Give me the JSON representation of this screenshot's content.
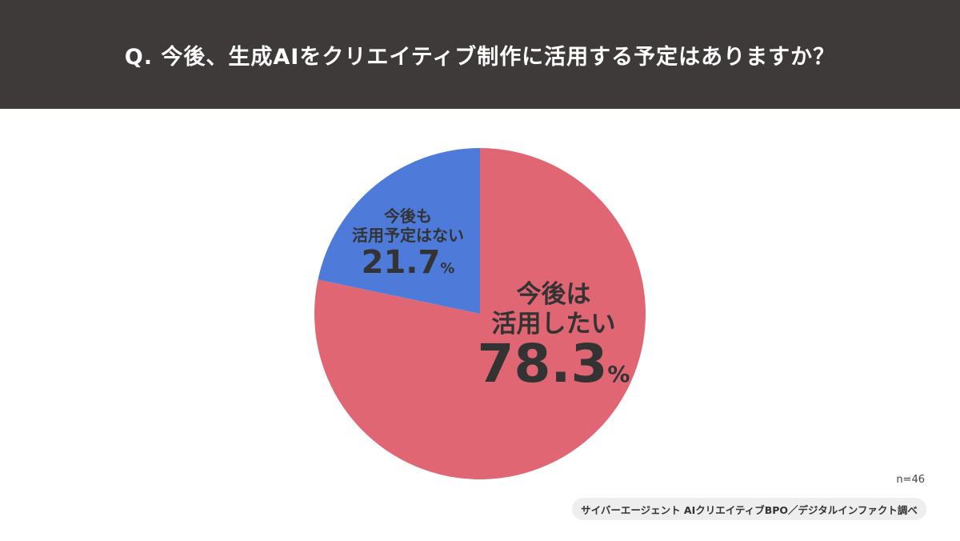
{
  "header": {
    "title": "Q. 今後、生成AIをクリエイティブ制作に活用する予定はありますか？"
  },
  "chart_data": {
    "type": "pie",
    "slices": [
      {
        "label_lines": [
          "今後は",
          "活用したい"
        ],
        "value": 78.3,
        "value_text": "78.3",
        "unit": "%",
        "color": "#e06673"
      },
      {
        "label_lines": [
          "今後も",
          "活用予定はない"
        ],
        "value": 21.7,
        "value_text": "21.7",
        "unit": "%",
        "color": "#4e7bd9"
      }
    ],
    "start_angle_deg": 0,
    "direction": "clockwise"
  },
  "footer": {
    "n_label": "n=46",
    "source": "サイバーエージェント AIクリエイティブBPO／デジタルインファクト調べ"
  }
}
